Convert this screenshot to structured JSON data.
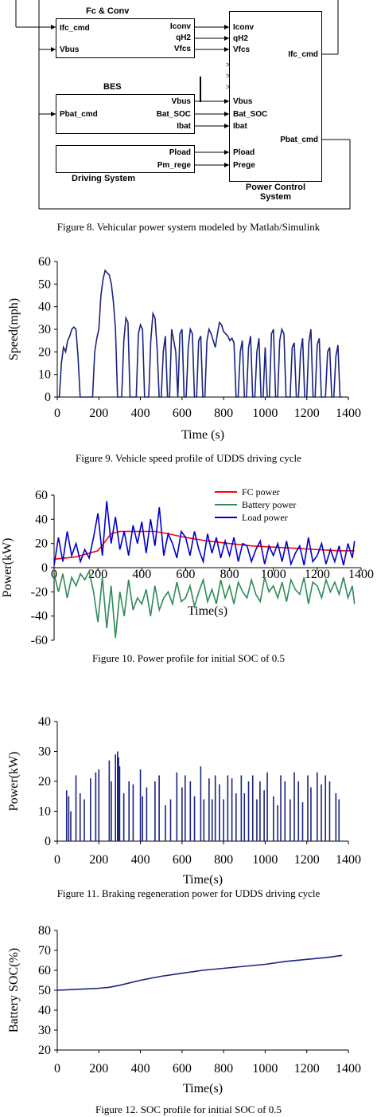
{
  "figure8": {
    "blocks": {
      "fc_conv": {
        "title": "Fc & Conv",
        "in_ports": [
          "Ifc_cmd",
          "Vbus"
        ],
        "out_ports": [
          "Iconv",
          "qH2",
          "Vfcs"
        ]
      },
      "bes": {
        "title": "BES",
        "in_ports": [
          "Pbat_cmd"
        ],
        "out_ports": [
          "Vbus",
          "Bat_SOC",
          "Ibat"
        ]
      },
      "driving": {
        "title": "Driving System",
        "out_ports": [
          "Pload",
          "Pm_rege"
        ]
      },
      "pcs": {
        "title_line1": "Power Control",
        "title_line2": "System",
        "in_ports": [
          "Iconv",
          "qH2",
          "Vfcs",
          "Vbus",
          "Bat_SOC",
          "Ibat",
          "Pload",
          "Prege"
        ],
        "out_ports": [
          "Ifc_cmd",
          "Pbat_cmd"
        ]
      }
    },
    "caption": "Figure 8. Vehicular power system modeled by Matlab/Simulink"
  },
  "figure9": {
    "caption": "Figure 9. Vehicle speed profile of UDDS driving cycle",
    "chart_data": {
      "type": "line",
      "xlabel": "Time (s)",
      "ylabel": "Speed(mph)",
      "xlim": [
        0,
        1400
      ],
      "ylim": [
        0,
        60
      ],
      "xticks": [
        "0",
        "200",
        "400",
        "600",
        "800",
        "1000",
        "1200",
        "1400"
      ],
      "yticks": [
        "0",
        "10",
        "20",
        "30",
        "40",
        "50",
        "60"
      ],
      "color": "#1a237e",
      "series": [
        {
          "x": [
            0,
            10,
            20,
            30,
            40,
            50,
            60,
            70,
            80,
            90,
            100,
            110,
            120,
            130,
            140,
            150,
            160,
            170,
            180,
            190,
            200,
            210,
            220,
            230,
            240,
            250,
            260,
            270,
            280,
            290,
            300,
            310,
            320,
            330,
            340,
            350,
            360,
            370,
            380,
            390,
            400,
            410,
            420,
            430,
            440,
            450,
            460,
            470,
            480,
            490,
            500,
            510,
            520,
            530,
            540,
            550,
            560,
            570,
            580,
            590,
            600,
            610,
            620,
            630,
            640,
            650,
            660,
            670,
            680,
            690,
            700,
            710,
            720,
            730,
            740,
            750,
            760,
            770,
            780,
            790,
            800,
            810,
            820,
            830,
            840,
            850,
            860,
            870,
            880,
            890,
            900,
            910,
            920,
            930,
            940,
            950,
            960,
            970,
            980,
            990,
            1000,
            1010,
            1020,
            1030,
            1040,
            1050,
            1060,
            1070,
            1080,
            1090,
            1100,
            1110,
            1120,
            1130,
            1140,
            1150,
            1160,
            1170,
            1180,
            1190,
            1200,
            1210,
            1220,
            1230,
            1240,
            1250,
            1260,
            1270,
            1280,
            1290,
            1300,
            1310,
            1320,
            1330,
            1340,
            1350,
            1360,
            1370
          ],
          "values": [
            0,
            0,
            15,
            22,
            20,
            25,
            27,
            30,
            31,
            30,
            18,
            0,
            0,
            0,
            0,
            0,
            0,
            0,
            20,
            26,
            30,
            45,
            52,
            56,
            55,
            54,
            50,
            42,
            30,
            0,
            0,
            0,
            25,
            35,
            33,
            0,
            0,
            0,
            0,
            28,
            32,
            30,
            0,
            0,
            0,
            25,
            37,
            35,
            22,
            0,
            0,
            20,
            27,
            0,
            0,
            30,
            25,
            20,
            0,
            28,
            30,
            0,
            0,
            22,
            30,
            28,
            0,
            0,
            25,
            27,
            0,
            0,
            25,
            30,
            28,
            25,
            22,
            28,
            33,
            32,
            29,
            28,
            27,
            25,
            26,
            24,
            0,
            0,
            20,
            25,
            0,
            0,
            22,
            27,
            0,
            0,
            20,
            26,
            0,
            0,
            22,
            0,
            0,
            28,
            30,
            0,
            0,
            25,
            30,
            28,
            0,
            0,
            0,
            22,
            24,
            0,
            0,
            20,
            26,
            0,
            0,
            24,
            30,
            0,
            0,
            23,
            26,
            0,
            0,
            0,
            20,
            22,
            0,
            0,
            18,
            23,
            0,
            0
          ]
        }
      ]
    }
  },
  "figure10": {
    "caption": "Figure 10. Power profile for initial SOC of 0.5",
    "chart_data": {
      "type": "line",
      "xlabel": "Time(s)",
      "ylabel": "Power(kW)",
      "xlim": [
        0,
        1400
      ],
      "ylim": [
        -60,
        60
      ],
      "xticks": [
        "0",
        "200",
        "400",
        "600",
        "800",
        "1000",
        "1200",
        "1400"
      ],
      "yticks": [
        "60",
        "40",
        "20",
        "0",
        "-20",
        "-40",
        "-60"
      ],
      "legend_position": "top-right",
      "series": [
        {
          "name": "FC power",
          "color": "#ff0000",
          "x": [
            0,
            100,
            200,
            260,
            300,
            380,
            460,
            520,
            600,
            700,
            800,
            900,
            1000,
            1100,
            1200,
            1300,
            1370
          ],
          "values": [
            7,
            9,
            14,
            28,
            30,
            30,
            30,
            28,
            25,
            22,
            20,
            18,
            17,
            16,
            15,
            14,
            14
          ]
        },
        {
          "name": "Battery power",
          "color": "#2e8b57",
          "x": [
            0,
            20,
            40,
            60,
            80,
            100,
            120,
            140,
            160,
            180,
            200,
            220,
            240,
            260,
            280,
            300,
            320,
            340,
            360,
            380,
            400,
            420,
            440,
            460,
            480,
            500,
            520,
            540,
            560,
            580,
            600,
            620,
            640,
            660,
            680,
            700,
            720,
            740,
            760,
            780,
            800,
            820,
            840,
            860,
            880,
            900,
            920,
            940,
            960,
            980,
            1000,
            1020,
            1040,
            1060,
            1080,
            1100,
            1120,
            1140,
            1160,
            1180,
            1200,
            1220,
            1240,
            1260,
            1280,
            1300,
            1320,
            1340,
            1360,
            1370
          ],
          "values": [
            -5,
            -20,
            -5,
            -25,
            -8,
            -15,
            -5,
            -10,
            -3,
            -20,
            -45,
            -8,
            -50,
            -15,
            -58,
            -20,
            -40,
            -10,
            -35,
            -25,
            -30,
            -18,
            -40,
            -15,
            -35,
            -25,
            -20,
            -30,
            -12,
            -28,
            -25,
            -15,
            -32,
            -20,
            -10,
            -28,
            -18,
            -30,
            -10,
            -25,
            -15,
            -30,
            -12,
            -20,
            -25,
            -10,
            -22,
            -28,
            -8,
            -20,
            -15,
            -25,
            -12,
            -28,
            -10,
            -18,
            -22,
            -8,
            -30,
            -12,
            -15,
            -25,
            -10,
            -20,
            -12,
            -22,
            -8,
            -25,
            -15,
            -30
          ]
        },
        {
          "name": "Load power",
          "color": "#0000cd",
          "x": [
            0,
            20,
            40,
            60,
            80,
            100,
            120,
            140,
            160,
            180,
            200,
            220,
            240,
            260,
            280,
            300,
            320,
            340,
            360,
            380,
            400,
            420,
            440,
            460,
            480,
            500,
            520,
            540,
            560,
            580,
            600,
            620,
            640,
            660,
            680,
            700,
            720,
            740,
            760,
            780,
            800,
            820,
            840,
            860,
            880,
            900,
            920,
            940,
            960,
            980,
            1000,
            1020,
            1040,
            1060,
            1080,
            1100,
            1120,
            1140,
            1160,
            1180,
            1200,
            1220,
            1240,
            1260,
            1280,
            1300,
            1320,
            1340,
            1360,
            1370
          ],
          "values": [
            2,
            25,
            5,
            30,
            10,
            20,
            5,
            15,
            8,
            25,
            45,
            10,
            55,
            20,
            42,
            15,
            30,
            10,
            35,
            20,
            38,
            12,
            40,
            18,
            50,
            10,
            28,
            20,
            8,
            30,
            25,
            10,
            30,
            15,
            5,
            28,
            12,
            25,
            8,
            22,
            10,
            25,
            5,
            20,
            18,
            5,
            15,
            22,
            3,
            18,
            10,
            20,
            5,
            22,
            3,
            12,
            18,
            2,
            25,
            5,
            10,
            20,
            3,
            15,
            5,
            18,
            2,
            20,
            8,
            22
          ]
        }
      ]
    }
  },
  "figure11": {
    "caption": "Figure 11. Braking regeneration power for UDDS driving cycle",
    "chart_data": {
      "type": "line",
      "xlabel": "Time(s)",
      "ylabel": "Power(kW)",
      "xlim": [
        0,
        1400
      ],
      "ylim": [
        0,
        40
      ],
      "xticks": [
        "0",
        "200",
        "400",
        "600",
        "800",
        "1000",
        "1200",
        "1400"
      ],
      "yticks": [
        "0",
        "10",
        "20",
        "30",
        "40"
      ],
      "color": "#1a237e",
      "spikes": {
        "x": [
          45,
          55,
          65,
          90,
          110,
          130,
          160,
          185,
          200,
          250,
          260,
          280,
          290,
          295,
          300,
          320,
          345,
          365,
          400,
          410,
          430,
          470,
          490,
          520,
          545,
          575,
          600,
          615,
          640,
          660,
          690,
          705,
          730,
          745,
          760,
          780,
          800,
          820,
          840,
          860,
          885,
          900,
          920,
          940,
          960,
          975,
          995,
          1010,
          1040,
          1060,
          1075,
          1095,
          1120,
          1140,
          1160,
          1180,
          1205,
          1220,
          1250,
          1270,
          1290,
          1310,
          1340,
          1355
        ],
        "values": [
          17,
          15,
          10,
          22,
          16,
          14,
          21,
          23,
          24,
          27,
          20,
          29,
          30,
          28,
          25,
          16,
          20,
          19,
          24,
          15,
          18,
          20,
          22,
          12,
          14,
          23,
          18,
          22,
          20,
          15,
          25,
          14,
          21,
          14,
          22,
          19,
          14,
          22,
          21,
          16,
          22,
          16,
          20,
          22,
          14,
          20,
          17,
          23,
          15,
          12,
          22,
          20,
          14,
          23,
          20,
          13,
          22,
          18,
          23,
          19,
          22,
          20,
          16,
          14
        ]
      }
    }
  },
  "figure12": {
    "caption": "Figure 12. SOC profile for initial SOC of 0.5",
    "chart_data": {
      "type": "line",
      "xlabel": "Time(s)",
      "ylabel": "Battery SOC(%)",
      "xlim": [
        0,
        1400
      ],
      "ylim": [
        20,
        80
      ],
      "xticks": [
        "0",
        "200",
        "400",
        "600",
        "800",
        "1000",
        "1200",
        "1400"
      ],
      "yticks": [
        "20",
        "30",
        "40",
        "50",
        "60",
        "70",
        "80"
      ],
      "color": "#1a237e",
      "series": [
        {
          "x": [
            0,
            100,
            200,
            250,
            300,
            400,
            500,
            600,
            700,
            800,
            900,
            1000,
            1100,
            1200,
            1300,
            1370
          ],
          "values": [
            50,
            50.5,
            51,
            51.5,
            52.5,
            55,
            57,
            58.5,
            60,
            61,
            62,
            63,
            64.5,
            65.5,
            66.5,
            67.5
          ]
        }
      ]
    }
  }
}
